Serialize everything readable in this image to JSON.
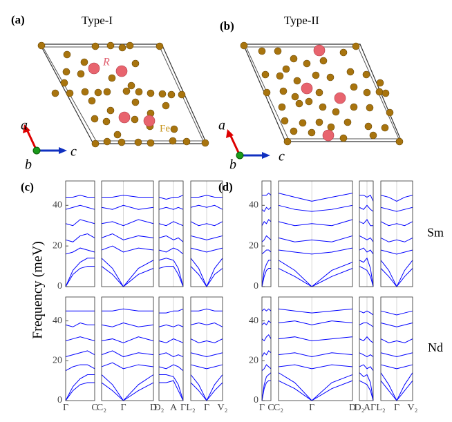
{
  "figure": {
    "panel_a": {
      "label": "(a)",
      "title": "Type-I",
      "species_r": "R",
      "species_fe": "Fe",
      "axis_a": "a",
      "axis_b": "b",
      "axis_c": "c"
    },
    "panel_b": {
      "label": "(b)",
      "title": "Type-II",
      "axis_a": "a",
      "axis_b": "b",
      "axis_c": "c"
    }
  },
  "chart_data": [
    {
      "type": "line",
      "label": "(c)",
      "ylabel": "Frequency (meV)",
      "color": "#0000ff",
      "ylim": [
        0,
        52
      ],
      "yticks": [
        0,
        20,
        40
      ],
      "subpanels": [
        {
          "x": [
            0,
            0.25,
            0.5,
            0.75,
            1
          ],
          "xticks": [
            {
              "value": 0,
              "label": "Γ"
            },
            {
              "value": 1,
              "label": "C"
            }
          ]
        },
        {
          "x": [
            0,
            0.21,
            0.42,
            0.71,
            1
          ],
          "xticks": [
            {
              "value": 0,
              "label": "C₂"
            },
            {
              "value": 0.42,
              "label": "Γ"
            },
            {
              "value": 1,
              "label": "D"
            }
          ]
        },
        {
          "x": [
            0,
            0.3,
            0.6,
            0.8,
            1
          ],
          "xticks": [
            {
              "value": 0,
              "label": "D₂"
            },
            {
              "value": 0.6,
              "label": "A"
            },
            {
              "value": 1,
              "label": "Γ"
            }
          ]
        },
        {
          "x": [
            0,
            0.25,
            0.5,
            0.75,
            1
          ],
          "xticks": [
            {
              "value": 0,
              "label": "L₂"
            },
            {
              "value": 0.5,
              "label": "Γ"
            },
            {
              "value": 1,
              "label": "V₂"
            }
          ]
        }
      ],
      "rows": [
        {
          "label": "Sm",
          "bands": [
            [
              [
                0,
                6,
                9,
                10,
                10
              ],
              [
                0,
                8,
                12,
                14,
                14
              ],
              [
                16,
                17,
                19,
                18,
                17
              ],
              [
                23,
                22,
                25,
                26,
                24
              ],
              [
                31,
                30,
                33,
                32,
                31
              ],
              [
                38,
                39,
                40,
                39,
                38
              ],
              [
                44,
                44,
                45,
                44,
                44
              ]
            ],
            [
              [
                10,
                6,
                0,
                6,
                9
              ],
              [
                14,
                9,
                0,
                9,
                13
              ],
              [
                18,
                20,
                17,
                19,
                18
              ],
              [
                24,
                26,
                23,
                25,
                24
              ],
              [
                31,
                32,
                30,
                33,
                31
              ],
              [
                39,
                38,
                40,
                38,
                39
              ],
              [
                44,
                44,
                45,
                44,
                44
              ]
            ],
            [
              [
                9,
                10,
                10,
                6,
                0
              ],
              [
                13,
                14,
                13,
                9,
                0
              ],
              [
                18,
                17,
                19,
                18,
                16
              ],
              [
                24,
                25,
                23,
                24,
                22
              ],
              [
                31,
                30,
                32,
                31,
                30
              ],
              [
                38,
                39,
                38,
                39,
                38
              ],
              [
                44,
                43,
                44,
                44,
                45
              ]
            ],
            [
              [
                10,
                6,
                0,
                6,
                9
              ],
              [
                14,
                9,
                0,
                9,
                14
              ],
              [
                19,
                18,
                17,
                18,
                19
              ],
              [
                25,
                24,
                23,
                24,
                25
              ],
              [
                32,
                30,
                31,
                30,
                32
              ],
              [
                39,
                40,
                39,
                40,
                38
              ],
              [
                44,
                44,
                45,
                44,
                44
              ]
            ]
          ]
        },
        {
          "label": "Nd",
          "bands": [
            [
              [
                0,
                5,
                8,
                9,
                9
              ],
              [
                0,
                7,
                11,
                13,
                13
              ],
              [
                15,
                17,
                18,
                18,
                16
              ],
              [
                22,
                23,
                24,
                25,
                23
              ],
              [
                30,
                31,
                32,
                31,
                30
              ],
              [
                38,
                37,
                39,
                38,
                38
              ],
              [
                45,
                45,
                45,
                45,
                45
              ]
            ],
            [
              [
                9,
                5,
                0,
                5,
                9
              ],
              [
                13,
                8,
                0,
                8,
                13
              ],
              [
                17,
                19,
                16,
                18,
                17
              ],
              [
                23,
                25,
                22,
                24,
                23
              ],
              [
                30,
                31,
                29,
                32,
                30
              ],
              [
                38,
                37,
                39,
                37,
                38
              ],
              [
                45,
                45,
                46,
                45,
                45
              ]
            ],
            [
              [
                9,
                9,
                10,
                5,
                0
              ],
              [
                13,
                13,
                12,
                8,
                0
              ],
              [
                17,
                16,
                18,
                17,
                15
              ],
              [
                23,
                24,
                22,
                23,
                22
              ],
              [
                30,
                29,
                31,
                30,
                29
              ],
              [
                37,
                38,
                37,
                38,
                37
              ],
              [
                44,
                44,
                45,
                45,
                46
              ]
            ],
            [
              [
                9,
                5,
                0,
                5,
                9
              ],
              [
                13,
                8,
                0,
                8,
                13
              ],
              [
                18,
                17,
                16,
                17,
                18
              ],
              [
                24,
                23,
                22,
                23,
                24
              ],
              [
                31,
                29,
                30,
                29,
                31
              ],
              [
                38,
                39,
                38,
                39,
                37
              ],
              [
                45,
                45,
                46,
                45,
                45
              ]
            ]
          ]
        }
      ]
    },
    {
      "type": "line",
      "label": "(d)",
      "color": "#0000ff",
      "ylim": [
        0,
        52
      ],
      "yticks": [
        0,
        20,
        40
      ],
      "subpanels": [
        {
          "x": [
            0,
            0.25,
            0.5,
            0.75,
            1
          ],
          "xticks": [
            {
              "value": 0,
              "label": "Γ"
            },
            {
              "value": 1,
              "label": "C"
            }
          ]
        },
        {
          "x": [
            0,
            0.22,
            0.45,
            0.72,
            1
          ],
          "xticks": [
            {
              "value": 0,
              "label": "C₂"
            },
            {
              "value": 0.45,
              "label": "Γ"
            },
            {
              "value": 1,
              "label": "D"
            }
          ]
        },
        {
          "x": [
            0,
            0.3,
            0.55,
            0.8,
            1
          ],
          "xticks": [
            {
              "value": 0,
              "label": "D₂"
            },
            {
              "value": 0.55,
              "label": "A"
            },
            {
              "value": 1,
              "label": "Γ"
            }
          ]
        },
        {
          "x": [
            0,
            0.25,
            0.5,
            0.75,
            1
          ],
          "xticks": [
            {
              "value": 0,
              "label": "L₂"
            },
            {
              "value": 0.5,
              "label": "Γ"
            },
            {
              "value": 1,
              "label": "V₂"
            }
          ]
        }
      ],
      "rows": [
        {
          "label": "Sm",
          "bands": [
            [
              [
                0,
                5,
                8,
                9,
                9
              ],
              [
                0,
                8,
                11,
                13,
                13
              ],
              [
                16,
                17,
                18,
                18,
                17
              ],
              [
                22,
                23,
                25,
                24,
                23
              ],
              [
                30,
                32,
                31,
                33,
                32
              ],
              [
                38,
                37,
                39,
                38,
                39
              ],
              [
                45,
                45,
                45,
                46,
                45
              ]
            ],
            [
              [
                9,
                5,
                0,
                5,
                9
              ],
              [
                13,
                8,
                0,
                8,
                12
              ],
              [
                18,
                17,
                16,
                17,
                19
              ],
              [
                24,
                22,
                23,
                22,
                25
              ],
              [
                32,
                30,
                31,
                30,
                33
              ],
              [
                40,
                38,
                37,
                38,
                40
              ],
              [
                46,
                44,
                42,
                44,
                46
              ]
            ],
            [
              [
                10,
                9,
                8,
                5,
                0
              ],
              [
                13,
                12,
                14,
                9,
                0
              ],
              [
                18,
                19,
                17,
                18,
                16
              ],
              [
                25,
                24,
                23,
                24,
                22
              ],
              [
                32,
                31,
                33,
                30,
                30
              ],
              [
                39,
                38,
                40,
                38,
                37
              ],
              [
                45,
                45,
                44,
                45,
                42
              ]
            ],
            [
              [
                9,
                5,
                0,
                5,
                9
              ],
              [
                13,
                8,
                0,
                8,
                13
              ],
              [
                18,
                17,
                16,
                17,
                18
              ],
              [
                24,
                22,
                23,
                22,
                24
              ],
              [
                32,
                30,
                31,
                30,
                32
              ],
              [
                39,
                38,
                37,
                38,
                39
              ],
              [
                45,
                44,
                42,
                44,
                45
              ]
            ]
          ]
        },
        {
          "label": "Nd",
          "bands": [
            [
              [
                0,
                6,
                9,
                10,
                10
              ],
              [
                0,
                8,
                12,
                13,
                14
              ],
              [
                15,
                16,
                18,
                17,
                16
              ],
              [
                22,
                24,
                23,
                25,
                24
              ],
              [
                31,
                30,
                32,
                33,
                31
              ],
              [
                38,
                39,
                38,
                40,
                39
              ],
              [
                45,
                46,
                45,
                46,
                45
              ]
            ],
            [
              [
                10,
                6,
                0,
                6,
                10
              ],
              [
                14,
                9,
                0,
                9,
                13
              ],
              [
                17,
                18,
                16,
                18,
                17
              ],
              [
                23,
                24,
                22,
                24,
                23
              ],
              [
                31,
                32,
                30,
                31,
                32
              ],
              [
                39,
                40,
                38,
                40,
                39
              ],
              [
                46,
                45,
                44,
                45,
                46
              ]
            ],
            [
              [
                10,
                9,
                8,
                5,
                0
              ],
              [
                14,
                12,
                13,
                9,
                0
              ],
              [
                17,
                18,
                16,
                17,
                15
              ],
              [
                24,
                23,
                22,
                23,
                22
              ],
              [
                31,
                30,
                32,
                30,
                29
              ],
              [
                38,
                39,
                39,
                38,
                37
              ],
              [
                45,
                44,
                45,
                44,
                43
              ]
            ],
            [
              [
                10,
                5,
                0,
                5,
                10
              ],
              [
                14,
                8,
                0,
                8,
                14
              ],
              [
                18,
                17,
                16,
                17,
                18
              ],
              [
                24,
                23,
                22,
                23,
                24
              ],
              [
                31,
                29,
                30,
                29,
                31
              ],
              [
                39,
                38,
                37,
                38,
                39
              ],
              [
                45,
                44,
                43,
                44,
                45
              ]
            ]
          ]
        }
      ]
    }
  ]
}
